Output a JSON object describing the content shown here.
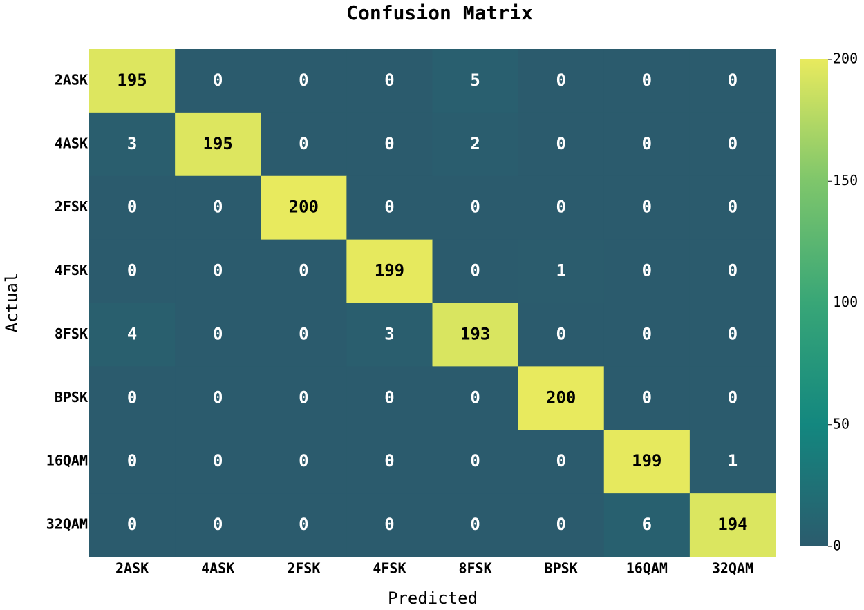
{
  "chart_data": {
    "type": "heatmap",
    "title": "Confusion Matrix",
    "x_label": "Predicted",
    "y_label": "Actual",
    "x_categories": [
      "2ASK",
      "4ASK",
      "2FSK",
      "4FSK",
      "8FSK",
      "BPSK",
      "16QAM",
      "32QAM"
    ],
    "y_categories": [
      "2ASK",
      "4ASK",
      "2FSK",
      "4FSK",
      "8FSK",
      "BPSK",
      "16QAM",
      "32QAM"
    ],
    "values": [
      [
        195,
        0,
        0,
        0,
        5,
        0,
        0,
        0
      ],
      [
        3,
        195,
        0,
        0,
        2,
        0,
        0,
        0
      ],
      [
        0,
        0,
        200,
        0,
        0,
        0,
        0,
        0
      ],
      [
        0,
        0,
        0,
        199,
        0,
        1,
        0,
        0
      ],
      [
        4,
        0,
        0,
        3,
        193,
        0,
        0,
        0
      ],
      [
        0,
        0,
        0,
        0,
        0,
        200,
        0,
        0
      ],
      [
        0,
        0,
        0,
        0,
        0,
        0,
        199,
        1
      ],
      [
        0,
        0,
        0,
        0,
        0,
        0,
        6,
        194
      ]
    ],
    "colors": [
      "#2b5b6d",
      "#13877f",
      "#38a677",
      "#7ec66b",
      "#e8ea5e"
    ],
    "clim": [
      0,
      200
    ],
    "cticks": [
      0,
      50,
      100,
      150,
      200
    ]
  }
}
